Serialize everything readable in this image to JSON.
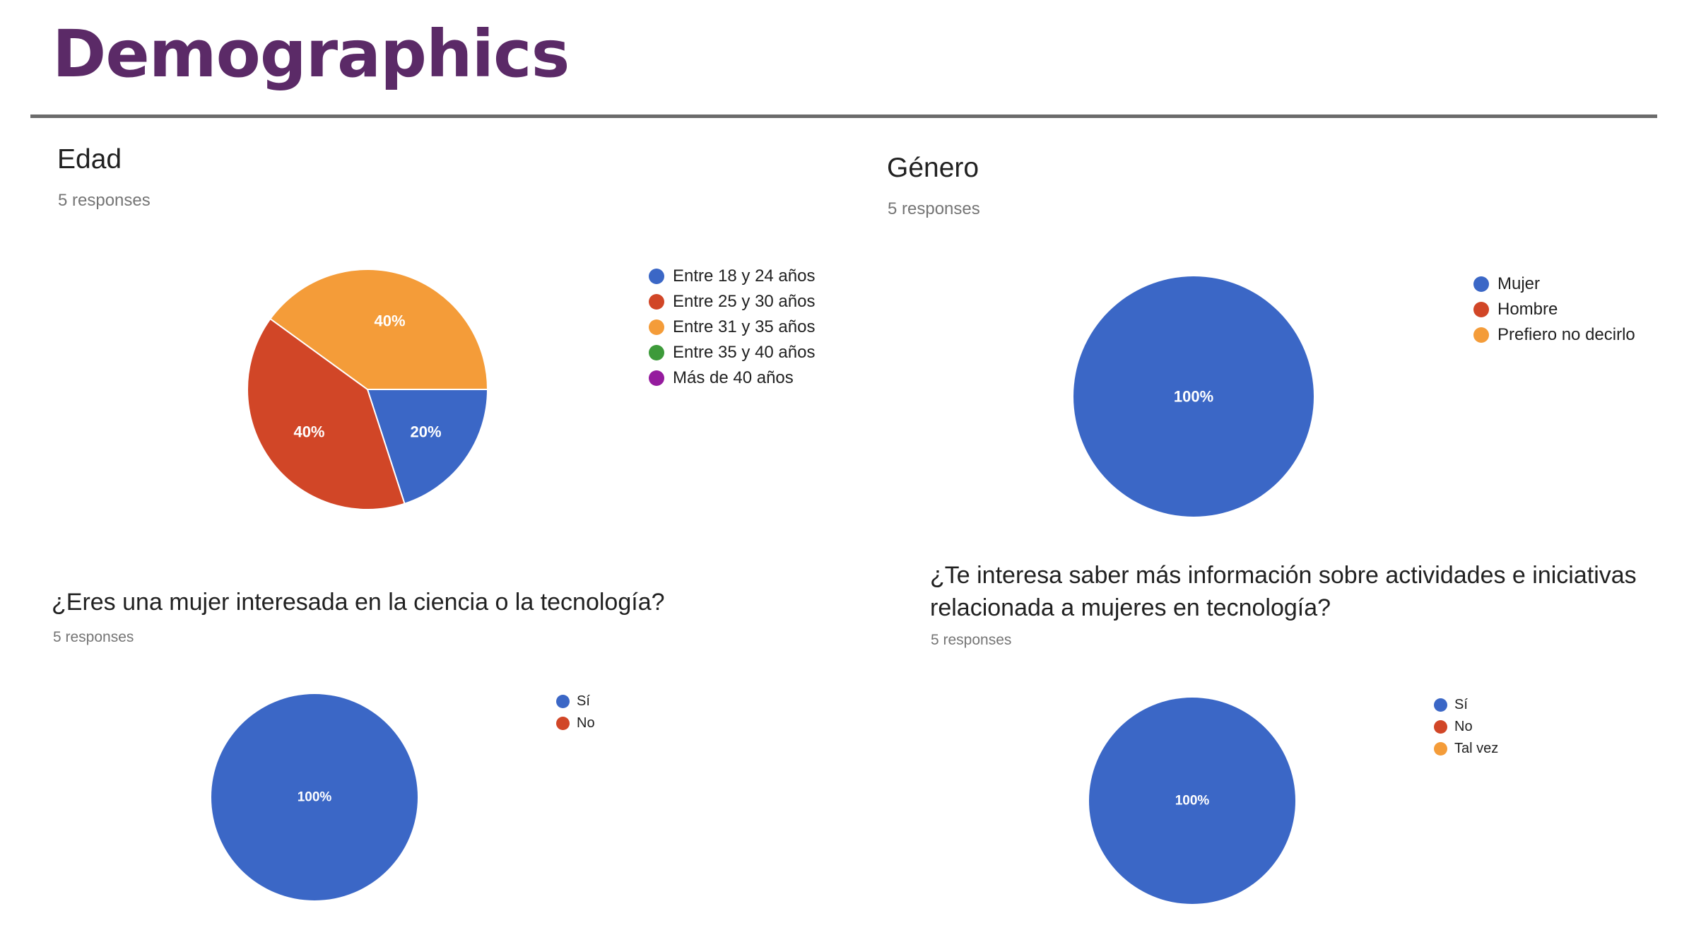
{
  "page": {
    "title": "Demographics"
  },
  "chart_data": [
    {
      "type": "pie",
      "title": "Edad",
      "subtitle": "5 responses",
      "categories": [
        "Entre 18 y 24 años",
        "Entre 25 y 30 años",
        "Entre 31 y 35 años",
        "Entre 35 y 40 años",
        "Más de 40 años"
      ],
      "values": [
        20,
        40,
        40,
        0,
        0
      ],
      "labels": [
        "20%",
        "40%",
        "40%",
        "",
        ""
      ],
      "colors": [
        "#3b67c6",
        "#d14627",
        "#f49c39",
        "#3d9a3a",
        "#951b9e"
      ],
      "legend": "right"
    },
    {
      "type": "pie",
      "title": "Género",
      "subtitle": "5 responses",
      "categories": [
        "Mujer",
        "Hombre",
        "Prefiero no decirlo"
      ],
      "values": [
        100,
        0,
        0
      ],
      "labels": [
        "100%",
        "",
        ""
      ],
      "colors": [
        "#3b67c6",
        "#d14627",
        "#f49c39"
      ],
      "legend": "right"
    },
    {
      "type": "pie",
      "title": "¿Eres una mujer interesada en la ciencia o la tecnología?",
      "subtitle": "5 responses",
      "categories": [
        "Sí",
        "No"
      ],
      "values": [
        100,
        0
      ],
      "labels": [
        "100%",
        ""
      ],
      "colors": [
        "#3b67c6",
        "#d14627"
      ],
      "legend": "right"
    },
    {
      "type": "pie",
      "title": "¿Te interesa saber más información sobre actividades e iniciativas relacionada a mujeres en tecnología?",
      "subtitle": "5 responses",
      "categories": [
        "Sí",
        "No",
        "Tal vez"
      ],
      "values": [
        100,
        0,
        0
      ],
      "labels": [
        "100%",
        "",
        ""
      ],
      "colors": [
        "#3b67c6",
        "#d14627",
        "#f49c39"
      ],
      "legend": "right"
    }
  ]
}
